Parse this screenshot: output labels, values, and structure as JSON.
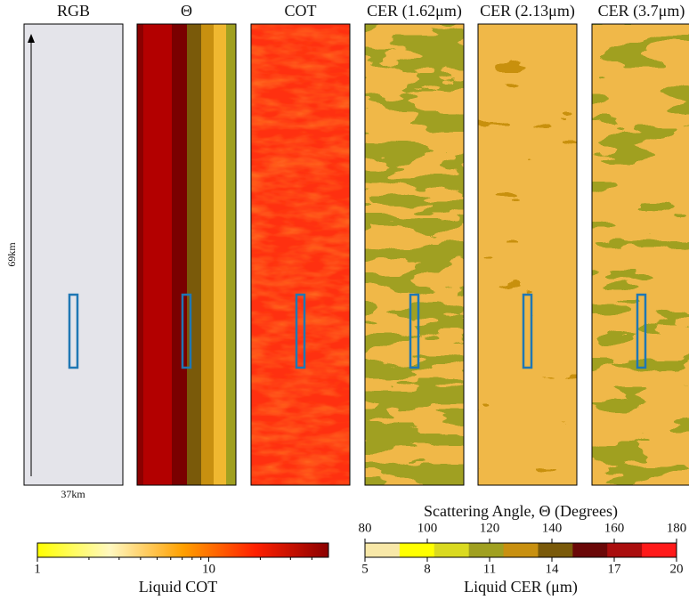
{
  "panels": [
    {
      "title": "RGB"
    },
    {
      "title": "Θ"
    },
    {
      "title": "COT"
    },
    {
      "title": "CER (1.62μm)"
    },
    {
      "title": "CER (2.13μm)"
    },
    {
      "title": "CER (3.7μm)"
    }
  ],
  "annotations": {
    "height": "69km",
    "width": "37km"
  },
  "colorbars": [
    {
      "label": "Liquid COT",
      "scale": "log",
      "lim": [
        1,
        50
      ],
      "ticks": [
        1,
        10
      ],
      "colors": [
        "#ffff00",
        "#fff8c0",
        "#ffa000",
        "#ff2000",
        "#8b0000"
      ]
    },
    {
      "label": "Liquid CER (μm)",
      "scale": "linear",
      "lim": [
        5,
        20
      ],
      "ticks": [
        5,
        8,
        11,
        14,
        17,
        20
      ],
      "top_label": "Scattering Angle, Θ (Degrees)",
      "top_lim": [
        80,
        180
      ],
      "top_ticks": [
        80,
        100,
        120,
        140,
        160,
        180
      ],
      "colors": [
        "#f8e8a8",
        "#ffff00",
        "#dada20",
        "#a0a020",
        "#c89010",
        "#7a5a0a",
        "#6a0808",
        "#aa0e0e",
        "#ff1a1a"
      ]
    }
  ]
}
